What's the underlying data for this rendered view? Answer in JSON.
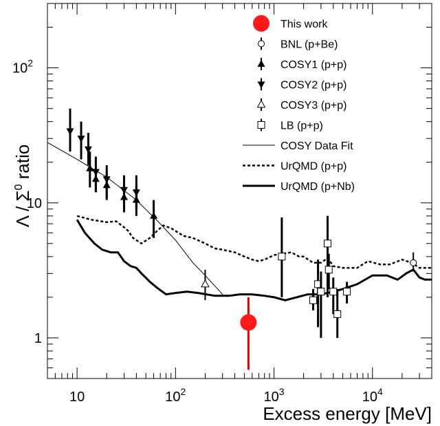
{
  "chart_data": {
    "type": "scatter",
    "xscale": "log",
    "yscale": "log",
    "xlim": [
      5,
      40000
    ],
    "ylim": [
      0.5,
      300
    ],
    "xlabel": "Excess energy [MeV]",
    "ylabel": "Λ / Σ0 ratio",
    "ylabel_parts": {
      "pre": "Λ / Σ",
      "sup": "0",
      "post": " ratio"
    },
    "x_ticks": [
      {
        "value": 10,
        "label": "10",
        "sup": ""
      },
      {
        "value": 100,
        "label": "10",
        "sup": "2"
      },
      {
        "value": 1000,
        "label": "10",
        "sup": "3"
      },
      {
        "value": 10000,
        "label": "10",
        "sup": "4"
      }
    ],
    "y_ticks": [
      {
        "value": 1,
        "label": "1",
        "sup": ""
      },
      {
        "value": 10,
        "label": "10",
        "sup": ""
      },
      {
        "value": 100,
        "label": "10",
        "sup": "2"
      }
    ],
    "legend_position": "top-right",
    "legend": [
      {
        "key": "this_work",
        "label": "This work",
        "marker": "big-dot"
      },
      {
        "key": "bnl",
        "label": "BNL (p+Be)",
        "marker": "open-circle"
      },
      {
        "key": "cosy1",
        "label": "COSY1 (p+p)",
        "marker": "triangle-up"
      },
      {
        "key": "cosy2",
        "label": "COSY2 (p+p)",
        "marker": "triangle-down"
      },
      {
        "key": "cosy3",
        "label": "COSY3 (p+p)",
        "marker": "open-triangle"
      },
      {
        "key": "lb",
        "label": "LB (p+p)",
        "marker": "open-square"
      },
      {
        "key": "fit",
        "label": "COSY Data Fit",
        "marker": "thin-line"
      },
      {
        "key": "urqmd_pp",
        "label": "UrQMD (p+p)",
        "marker": "dashed-line"
      },
      {
        "key": "urqmd_pnb",
        "label": "UrQMD (p+Nb)",
        "marker": "thick-line"
      }
    ],
    "series": {
      "this_work": [
        {
          "x": 550,
          "y": 1.3,
          "lo": 0.58,
          "hi": 2.0
        }
      ],
      "bnl": [
        {
          "x": 26000,
          "y": 3.6,
          "lo": 3.1,
          "hi": 4.3
        }
      ],
      "cosy1": [
        {
          "x": 13.5,
          "y": 18,
          "lo": 13,
          "hi": 24
        },
        {
          "x": 15.5,
          "y": 15,
          "lo": 12,
          "hi": 18
        },
        {
          "x": 20,
          "y": 13.5,
          "lo": 10.5,
          "hi": 17
        },
        {
          "x": 30,
          "y": 11,
          "lo": 8.5,
          "hi": 14
        },
        {
          "x": 40,
          "y": 10.5,
          "lo": 8,
          "hi": 13.5
        },
        {
          "x": 60,
          "y": 8,
          "lo": 5.5,
          "hi": 10.5
        }
      ],
      "cosy2": [
        {
          "x": 8.5,
          "y": 34,
          "lo": 24,
          "hi": 50
        },
        {
          "x": 11,
          "y": 30,
          "lo": 21,
          "hi": 40
        },
        {
          "x": 13,
          "y": 25,
          "lo": 19,
          "hi": 33
        },
        {
          "x": 15.5,
          "y": 17,
          "lo": 12,
          "hi": 22
        },
        {
          "x": 20,
          "y": 15,
          "lo": 11,
          "hi": 19
        },
        {
          "x": 30,
          "y": 12.5,
          "lo": 9,
          "hi": 16
        },
        {
          "x": 40,
          "y": 12,
          "lo": 9,
          "hi": 16
        }
      ],
      "cosy3": [
        {
          "x": 200,
          "y": 2.5,
          "lo": 1.9,
          "hi": 3.2
        }
      ],
      "lb": [
        {
          "x": 1200,
          "y": 4.0,
          "lo": 2.0,
          "hi": 7.8
        },
        {
          "x": 2500,
          "y": 1.9,
          "lo": 1.6,
          "hi": 2.3
        },
        {
          "x": 2800,
          "y": 2.5,
          "lo": 1.2,
          "hi": 3.8
        },
        {
          "x": 3000,
          "y": 2.2,
          "lo": 1.0,
          "hi": 3.1
        },
        {
          "x": 3500,
          "y": 5.0,
          "lo": 2.0,
          "hi": 8.0
        },
        {
          "x": 3600,
          "y": 3.2,
          "lo": 2.3,
          "hi": 4.2
        },
        {
          "x": 4000,
          "y": 2.2,
          "lo": 1.5,
          "hi": 2.8
        },
        {
          "x": 4400,
          "y": 1.5,
          "lo": 1.0,
          "hi": 2.3
        },
        {
          "x": 5500,
          "y": 2.2,
          "lo": 1.8,
          "hi": 2.6
        }
      ],
      "fit": [
        [
          5,
          28
        ],
        [
          10,
          21
        ],
        [
          20,
          15.5
        ],
        [
          40,
          10.5
        ],
        [
          70,
          7
        ],
        [
          100,
          5.3
        ],
        [
          150,
          3.6
        ],
        [
          200,
          2.9
        ],
        [
          300,
          2.1
        ]
      ],
      "urqmd_pp": [
        [
          10,
          8
        ],
        [
          14,
          7.5
        ],
        [
          20,
          7.2
        ],
        [
          25,
          7.3
        ],
        [
          30,
          6.6
        ],
        [
          33,
          6.2
        ],
        [
          37,
          5.5
        ],
        [
          45,
          5.0
        ],
        [
          55,
          5.5
        ],
        [
          65,
          6.2
        ],
        [
          75,
          6.8
        ],
        [
          90,
          6.5
        ],
        [
          120,
          5.7
        ],
        [
          150,
          5.5
        ],
        [
          200,
          5.0
        ],
        [
          250,
          4.6
        ],
        [
          300,
          4.5
        ],
        [
          400,
          4.3
        ],
        [
          500,
          4.0
        ],
        [
          600,
          3.8
        ],
        [
          700,
          3.7
        ],
        [
          800,
          3.8
        ],
        [
          1000,
          4.1
        ],
        [
          1200,
          4.2
        ],
        [
          1500,
          4.3
        ],
        [
          1800,
          4.0
        ],
        [
          2000,
          4.0
        ],
        [
          2500,
          3.6
        ],
        [
          3000,
          3.6
        ],
        [
          3500,
          3.9
        ],
        [
          4000,
          3.4
        ],
        [
          5000,
          3.3
        ],
        [
          7000,
          3.3
        ],
        [
          9000,
          3.7
        ],
        [
          12000,
          3.5
        ],
        [
          15000,
          3.5
        ],
        [
          20000,
          3.8
        ],
        [
          25000,
          3.6
        ],
        [
          30000,
          3.3
        ],
        [
          40000,
          3.3
        ]
      ],
      "urqmd_pnb": [
        [
          10,
          7.5
        ],
        [
          12,
          6.0
        ],
        [
          15,
          5.0
        ],
        [
          18,
          4.5
        ],
        [
          22,
          4.3
        ],
        [
          26,
          4.3
        ],
        [
          30,
          3.7
        ],
        [
          35,
          3.4
        ],
        [
          40,
          3.3
        ],
        [
          45,
          3.0
        ],
        [
          55,
          2.6
        ],
        [
          65,
          2.35
        ],
        [
          80,
          2.1
        ],
        [
          100,
          2.15
        ],
        [
          130,
          2.2
        ],
        [
          170,
          2.15
        ],
        [
          250,
          2.05
        ],
        [
          350,
          2.05
        ],
        [
          450,
          2.1
        ],
        [
          600,
          2.1
        ],
        [
          800,
          2.05
        ],
        [
          1000,
          2.0
        ],
        [
          1300,
          1.9
        ],
        [
          1700,
          2.0
        ],
        [
          2200,
          2.1
        ],
        [
          3000,
          2.1
        ],
        [
          4000,
          2.2
        ],
        [
          5000,
          2.3
        ],
        [
          7000,
          2.5
        ],
        [
          10000,
          2.9
        ],
        [
          14000,
          2.9
        ],
        [
          18000,
          2.7
        ],
        [
          22000,
          3.0
        ],
        [
          26000,
          3.2
        ],
        [
          30000,
          2.8
        ],
        [
          34000,
          2.7
        ],
        [
          40000,
          2.7
        ]
      ]
    }
  }
}
